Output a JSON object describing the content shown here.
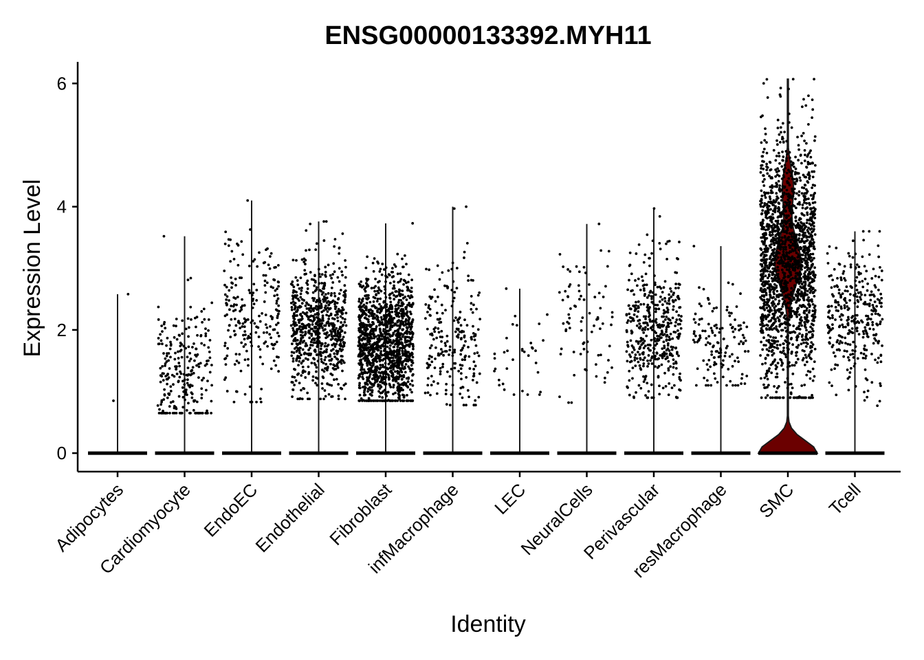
{
  "chart_data": {
    "type": "violin",
    "title": "ENSG00000133392.MYH11",
    "xlabel": "Identity",
    "ylabel": "Expression Level",
    "ylim": [
      -0.3,
      6.35
    ],
    "yticks": [
      0,
      2,
      4,
      6
    ],
    "grid": false,
    "legend": "none",
    "categories": [
      "Adipocytes",
      "Cardiomyocyte",
      "EndoEC",
      "Endothelial",
      "Fibroblast",
      "infMacrophage",
      "LEC",
      "NeuralCells",
      "Perivascular",
      "resMacrophage",
      "SMC",
      "Tcell"
    ],
    "series": [
      {
        "category": "Adipocytes",
        "max": 2.58,
        "nonzero_range": [
          0.85,
          2.58
        ],
        "nonzero_center": 1.7,
        "nonzero_points": 2,
        "zero_points": 160,
        "fill": "#ffffff"
      },
      {
        "category": "Cardiomyocyte",
        "max": 3.52,
        "nonzero_range": [
          0.65,
          3.52
        ],
        "nonzero_center": 1.25,
        "nonzero_points": 250,
        "zero_points": 900,
        "fill": "#ffffff"
      },
      {
        "category": "EndoEC",
        "max": 4.1,
        "nonzero_range": [
          0.83,
          4.1
        ],
        "nonzero_center": 2.2,
        "nonzero_points": 220,
        "zero_points": 900,
        "fill": "#ffffff"
      },
      {
        "category": "Endothelial",
        "max": 3.76,
        "nonzero_range": [
          0.88,
          3.76
        ],
        "nonzero_center": 2.05,
        "nonzero_points": 700,
        "zero_points": 900,
        "fill": "#ffffff"
      },
      {
        "category": "Fibroblast",
        "max": 3.73,
        "nonzero_range": [
          0.85,
          3.73
        ],
        "nonzero_center": 1.75,
        "nonzero_points": 1300,
        "zero_points": 900,
        "fill": "#ffffff"
      },
      {
        "category": "infMacrophage",
        "max": 4.0,
        "nonzero_range": [
          0.78,
          4.0
        ],
        "nonzero_center": 1.85,
        "nonzero_points": 220,
        "zero_points": 900,
        "fill": "#ffffff"
      },
      {
        "category": "LEC",
        "max": 2.67,
        "nonzero_range": [
          0.95,
          2.67
        ],
        "nonzero_center": 1.5,
        "nonzero_points": 35,
        "zero_points": 900,
        "fill": "#ffffff"
      },
      {
        "category": "NeuralCells",
        "max": 3.72,
        "nonzero_range": [
          0.82,
          3.72
        ],
        "nonzero_center": 2.2,
        "nonzero_points": 80,
        "zero_points": 900,
        "fill": "#ffffff"
      },
      {
        "category": "Perivascular",
        "max": 3.97,
        "nonzero_range": [
          0.9,
          3.97
        ],
        "nonzero_center": 2.05,
        "nonzero_points": 450,
        "zero_points": 900,
        "fill": "#ffffff"
      },
      {
        "category": "resMacrophage",
        "max": 3.36,
        "nonzero_range": [
          1.1,
          3.36
        ],
        "nonzero_center": 1.8,
        "nonzero_points": 140,
        "zero_points": 900,
        "fill": "#ffffff"
      },
      {
        "category": "SMC",
        "max": 6.07,
        "nonzero_range": [
          0.9,
          6.07
        ],
        "nonzero_center": 3.1,
        "nonzero_points": 1800,
        "zero_points": 900,
        "fill": "#6b0000"
      },
      {
        "category": "Tcell",
        "max": 3.6,
        "nonzero_range": [
          0.77,
          3.6
        ],
        "nonzero_center": 2.25,
        "nonzero_points": 330,
        "zero_points": 900,
        "fill": "#ffffff"
      }
    ]
  }
}
